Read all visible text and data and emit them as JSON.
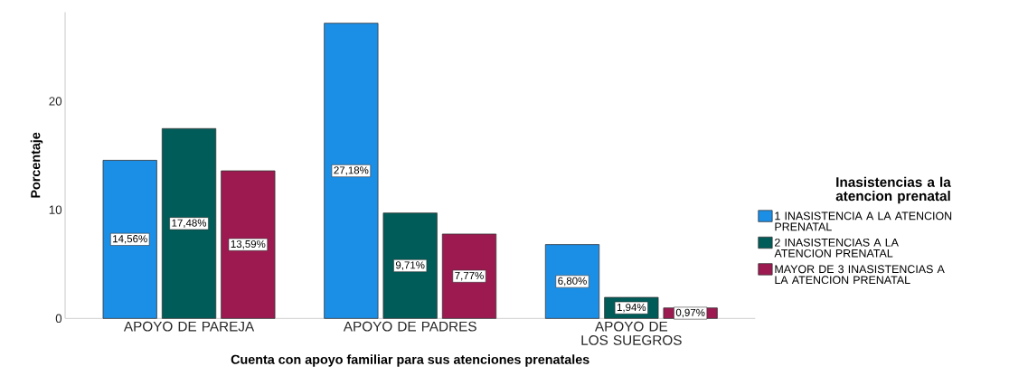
{
  "chart_data": {
    "type": "bar",
    "xlabel": "Cuenta con apoyo familiar para sus atenciones prenatales",
    "ylabel": "Porcentaje",
    "legend_title": "Inasistencias a la atencion prenatal",
    "legend": "right",
    "categories": [
      "APOYO DE PAREJA",
      "APOYO DE PADRES",
      "APOYO DE LOS SUEGROS"
    ],
    "ylim": [
      0,
      28.2
    ],
    "yticks": [
      0,
      10,
      20
    ],
    "series": [
      {
        "name": "1 INASISTENCIA A LA ATENCION PRENATAL",
        "color": "#1b8ee6",
        "values": [
          14.56,
          27.18,
          6.8
        ],
        "value_labels": [
          "14,56%",
          "27,18%",
          "6,80%"
        ]
      },
      {
        "name": "2 INASISTENCIAS A LA ATENCION PRENATAL",
        "color": "#005c59",
        "values": [
          17.48,
          9.71,
          1.94
        ],
        "value_labels": [
          "17,48%",
          "9,71%",
          "1,94%"
        ]
      },
      {
        "name": "MAYOR DE 3 INASISTENCIAS A LA ATENCION PRENATAL",
        "color": "#9c1a50",
        "values": [
          13.59,
          7.77,
          0.97
        ],
        "value_labels": [
          "13,59%",
          "7,77%",
          "0,97%"
        ]
      }
    ]
  }
}
